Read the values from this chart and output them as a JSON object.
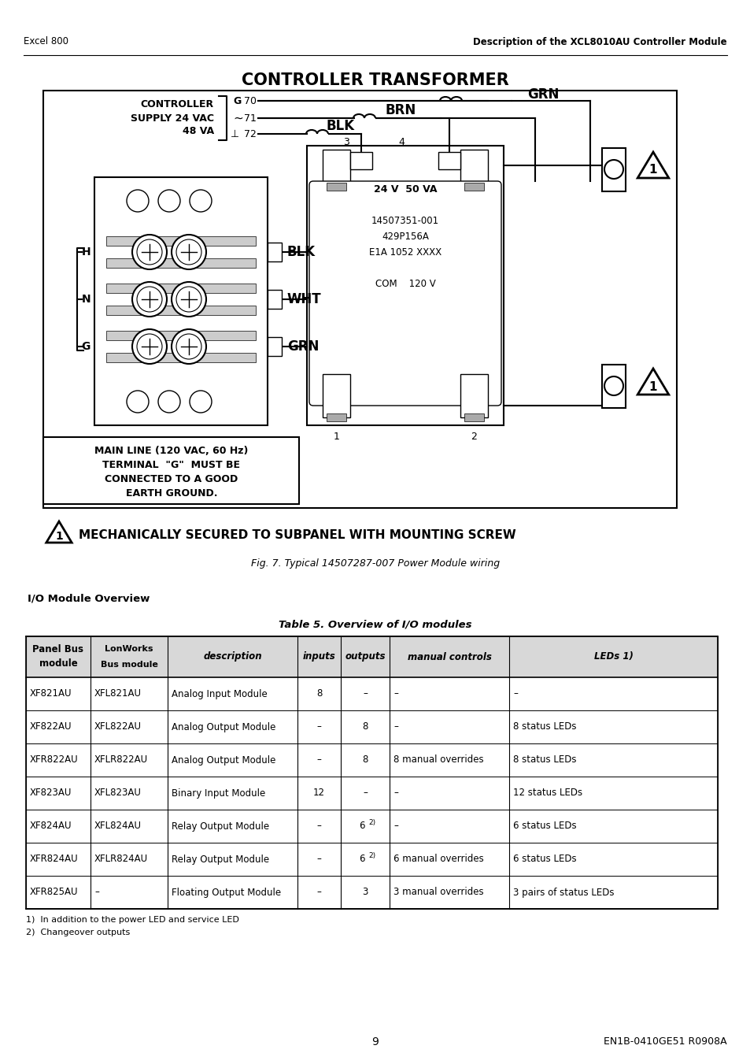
{
  "header_left": "Excel 800",
  "header_right": "Description of the XCL8010AU Controller Module",
  "diagram_title": "CONTROLLER TRANSFORMER",
  "warning_text": "MECHANICALLY SECURED TO SUBPANEL WITH MOUNTING SCREW",
  "fig_caption": "Fig. 7. Typical 14507287-007 Power Module wiring",
  "io_section_title": "I/O Module Overview",
  "table_title": "Table 5. Overview of I/O modules",
  "table_rows": [
    [
      "XF821AU",
      "XFL821AU",
      "Analog Input Module",
      "8",
      "–",
      "–",
      "–"
    ],
    [
      "XF822AU",
      "XFL822AU",
      "Analog Output Module",
      "–",
      "8",
      "–",
      "8 status LEDs"
    ],
    [
      "XFR822AU",
      "XFLR822AU",
      "Analog Output Module",
      "–",
      "8",
      "8 manual overrides",
      "8 status LEDs"
    ],
    [
      "XF823AU",
      "XFL823AU",
      "Binary Input Module",
      "12",
      "–",
      "–",
      "12 status LEDs"
    ],
    [
      "XF824AU",
      "XFL824AU",
      "Relay Output Module",
      "–",
      "6 2)",
      "–",
      "6 status LEDs"
    ],
    [
      "XFR824AU",
      "XFLR824AU",
      "Relay Output Module",
      "–",
      "6 2)",
      "6 manual overrides",
      "6 status LEDs"
    ],
    [
      "XFR825AU",
      "–",
      "Floating Output Module",
      "–",
      "3",
      "3 manual overrides",
      "3 pairs of status LEDs"
    ]
  ],
  "page_number": "9",
  "page_ref": "EN1B-0410GE51 R0908A",
  "bg_color": "#ffffff",
  "lw": 1.5
}
